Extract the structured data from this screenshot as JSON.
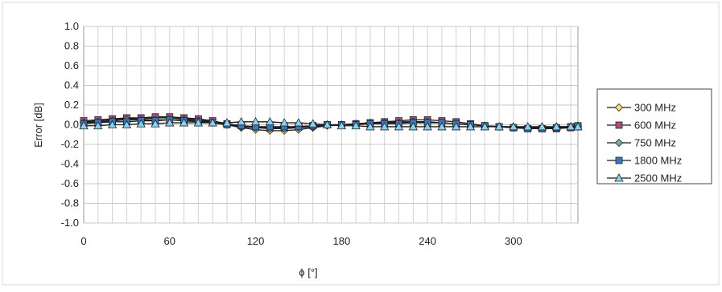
{
  "chart_data": {
    "type": "line",
    "xlabel": "ϕ [°]",
    "ylabel": "Error [dB]",
    "xlim": [
      0,
      345
    ],
    "ylim": [
      -1.0,
      1.0
    ],
    "xticks": [
      0,
      60,
      120,
      180,
      240,
      300
    ],
    "yticks": [
      1.0,
      0.8,
      0.6,
      0.4,
      0.2,
      0.0,
      -0.2,
      -0.4,
      -0.6,
      -0.8,
      -1.0
    ],
    "ytick_labels": [
      "1.0",
      "0.8",
      "0.6",
      "0.4",
      "0.2",
      "0.0",
      "-0.2",
      "-0.4",
      "-0.6",
      "-0.8",
      "-1.0"
    ],
    "grid": true,
    "legend_position": "right",
    "x": [
      0,
      10,
      20,
      30,
      40,
      50,
      60,
      70,
      80,
      90,
      100,
      110,
      120,
      130,
      140,
      150,
      160,
      170,
      180,
      190,
      200,
      210,
      220,
      230,
      240,
      250,
      260,
      270,
      280,
      290,
      300,
      310,
      320,
      330,
      340,
      345
    ],
    "series": [
      {
        "name": "300 MHz",
        "marker": "diamond",
        "fill": "#f6e27a",
        "values": [
          0.03,
          0.04,
          0.05,
          0.06,
          0.06,
          0.07,
          0.07,
          0.06,
          0.05,
          0.03,
          0.0,
          -0.03,
          -0.05,
          -0.06,
          -0.06,
          -0.05,
          -0.03,
          -0.01,
          0.0,
          0.01,
          0.02,
          0.02,
          0.03,
          0.03,
          0.03,
          0.02,
          0.01,
          0.0,
          -0.01,
          -0.02,
          -0.03,
          -0.03,
          -0.03,
          -0.03,
          -0.02,
          -0.02
        ]
      },
      {
        "name": "600 MHz",
        "marker": "square",
        "fill": "#a0507a",
        "values": [
          0.04,
          0.05,
          0.06,
          0.07,
          0.07,
          0.08,
          0.08,
          0.07,
          0.06,
          0.04,
          0.01,
          -0.01,
          -0.02,
          -0.03,
          -0.03,
          -0.02,
          -0.01,
          0.0,
          0.0,
          0.01,
          0.02,
          0.03,
          0.04,
          0.05,
          0.05,
          0.04,
          0.03,
          0.01,
          -0.01,
          -0.02,
          -0.03,
          -0.04,
          -0.04,
          -0.04,
          -0.03,
          -0.02
        ]
      },
      {
        "name": "750 MHz",
        "marker": "diamond",
        "fill": "#6fb0a0",
        "values": [
          0.02,
          0.03,
          0.04,
          0.05,
          0.05,
          0.05,
          0.05,
          0.05,
          0.04,
          0.02,
          0.0,
          -0.02,
          -0.03,
          -0.04,
          -0.04,
          -0.03,
          -0.02,
          -0.01,
          0.0,
          0.01,
          0.01,
          0.02,
          0.02,
          0.03,
          0.03,
          0.02,
          0.01,
          0.0,
          -0.01,
          -0.02,
          -0.02,
          -0.03,
          -0.03,
          -0.02,
          -0.02,
          -0.01
        ]
      },
      {
        "name": "1800 MHz",
        "marker": "square",
        "fill": "#3a78c0",
        "values": [
          0.01,
          0.02,
          0.03,
          0.03,
          0.04,
          0.04,
          0.05,
          0.04,
          0.03,
          0.02,
          0.0,
          -0.01,
          -0.02,
          -0.02,
          -0.02,
          -0.02,
          -0.01,
          0.0,
          0.0,
          0.0,
          0.01,
          0.01,
          0.01,
          0.02,
          0.02,
          0.02,
          0.01,
          0.0,
          -0.01,
          -0.02,
          -0.03,
          -0.04,
          -0.04,
          -0.03,
          -0.02,
          -0.01
        ]
      },
      {
        "name": "2500 MHz",
        "marker": "triangle",
        "fill": "#8ad0f0",
        "values": [
          -0.01,
          -0.01,
          0.0,
          0.0,
          0.01,
          0.01,
          0.02,
          0.02,
          0.02,
          0.02,
          0.02,
          0.03,
          0.03,
          0.03,
          0.02,
          0.02,
          0.01,
          0.0,
          -0.01,
          -0.01,
          -0.02,
          -0.02,
          -0.02,
          -0.02,
          -0.02,
          -0.02,
          -0.02,
          -0.02,
          -0.02,
          -0.02,
          -0.02,
          -0.02,
          -0.02,
          -0.02,
          -0.02,
          -0.02
        ]
      }
    ]
  }
}
